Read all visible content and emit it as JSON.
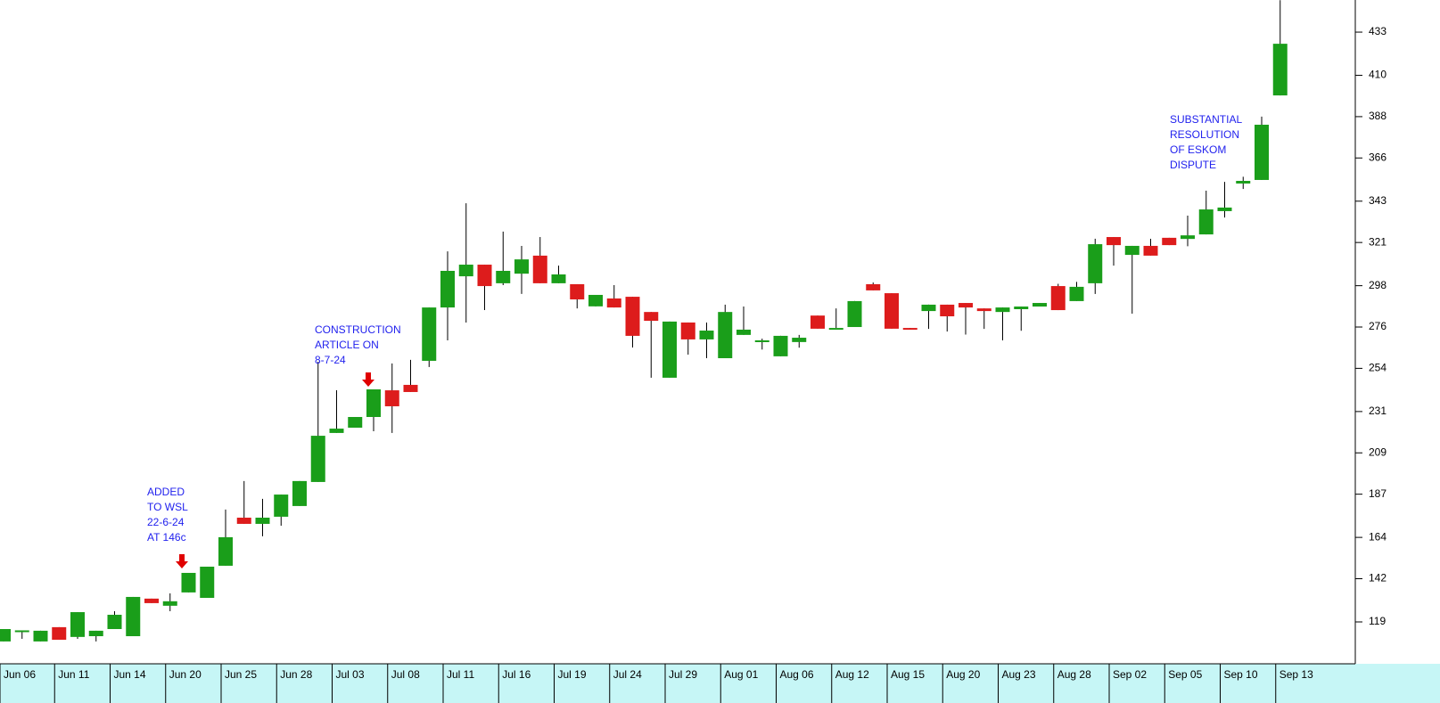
{
  "chart_data": {
    "type": "candlestick",
    "categories": [
      "Jun 06",
      null,
      null,
      "Jun 11",
      null,
      null,
      "Jun 14",
      null,
      null,
      "Jun 20",
      null,
      null,
      "Jun 25",
      null,
      null,
      "Jun 28",
      null,
      null,
      "Jul 03",
      null,
      null,
      "Jul 08",
      null,
      null,
      "Jul 11",
      null,
      null,
      "Jul 16",
      null,
      null,
      "Jul 19",
      null,
      null,
      "Jul 24",
      null,
      null,
      "Jul 29",
      null,
      null,
      "Aug 01",
      null,
      null,
      "Aug 06",
      null,
      null,
      "Aug 12",
      null,
      null,
      "Aug 15",
      null,
      null,
      "Aug 20",
      null,
      null,
      "Aug 23",
      null,
      null,
      "Aug 28",
      null,
      null,
      "Sep 02",
      null,
      null,
      "Sep 05",
      null,
      null,
      "Sep 10",
      null,
      null,
      "Sep 13"
    ],
    "open": [
      108.6,
      114,
      108.6,
      116.2,
      111,
      111.4,
      115.2,
      111.4,
      131.4,
      127.6,
      134.7,
      131.8,
      148.9,
      174.5,
      171.2,
      175,
      180.7,
      193.5,
      219.6,
      222.4,
      228.1,
      242.3,
      245.2,
      258,
      286.4,
      303,
      309.2,
      299.3,
      304.4,
      314,
      299.3,
      298.8,
      287,
      291.2,
      292.1,
      284,
      249,
      278.4,
      269.4,
      259.4,
      271.8,
      268.9,
      260.4,
      268,
      282.1,
      275.5,
      276,
      298.8,
      294,
      275.5,
      284.5,
      287.9,
      288.8,
      285.9,
      284,
      285.5,
      286.9,
      297.8,
      289.8,
      299.3,
      323.9,
      314.4,
      319.2,
      323.5,
      322.9,
      325.3,
      337.7,
      352.4,
      354.3,
      399.3
    ],
    "high": [
      115.2,
      114.5,
      114.3,
      116.2,
      124.2,
      114.3,
      124.7,
      132.3,
      131.4,
      134.2,
      145.1,
      148.4,
      178.8,
      194,
      184.5,
      186.8,
      194,
      257.5,
      242.3,
      228.1,
      242.8,
      256.6,
      258.5,
      286.4,
      316.3,
      341.9,
      309.2,
      326.8,
      319.2,
      323.9,
      308.7,
      298.8,
      293.1,
      298.3,
      292.1,
      284,
      278.9,
      278.4,
      278.4,
      287.9,
      286.9,
      269.8,
      271.3,
      271.8,
      282.1,
      285.9,
      289.8,
      299.7,
      294,
      275.5,
      287.9,
      287.9,
      288.8,
      285.9,
      286.4,
      286.9,
      288.8,
      299,
      300,
      323,
      323.9,
      319.2,
      323,
      323.5,
      335.3,
      348.6,
      353.3,
      356,
      388,
      450
    ],
    "low": [
      108.6,
      110,
      108.6,
      109.5,
      110,
      108.6,
      115.2,
      111.4,
      129,
      124.7,
      134.7,
      131.8,
      148.9,
      171.2,
      164.6,
      170.2,
      180.7,
      193.5,
      219.6,
      222.4,
      220.5,
      219.6,
      241.4,
      254.7,
      268.9,
      278.4,
      285,
      298.3,
      293.6,
      299.3,
      299.3,
      285.9,
      287,
      286.4,
      265.1,
      249,
      249,
      261.3,
      259.4,
      259.4,
      271.8,
      264,
      260.4,
      265,
      275.1,
      275.5,
      276,
      295.5,
      275.1,
      274.6,
      275,
      273.6,
      272,
      275,
      268.9,
      274,
      286.9,
      285,
      289.8,
      293.6,
      308.7,
      283.1,
      314,
      319.6,
      319,
      325.3,
      334.3,
      349.5,
      354.3,
      399.3
    ],
    "close": [
      115.2,
      114.5,
      114.3,
      109.5,
      124.2,
      114.3,
      122.8,
      132.3,
      129,
      130,
      145.1,
      148.4,
      164.1,
      171.2,
      174.5,
      186.8,
      194,
      218.1,
      221.9,
      228.1,
      242.8,
      233.8,
      241.4,
      286.4,
      305.9,
      309.2,
      297.8,
      305.9,
      312,
      299.3,
      304,
      290.7,
      293.1,
      286.4,
      271.3,
      279.3,
      278.9,
      269.4,
      274.1,
      284,
      274.6,
      268.9,
      271.3,
      270.3,
      275.1,
      275.5,
      289.8,
      295.5,
      275.1,
      274.6,
      287.9,
      281.7,
      286.4,
      284.5,
      286.4,
      286.9,
      288.8,
      285,
      297.4,
      320.1,
      319.6,
      319.2,
      314,
      319.6,
      324.8,
      338.6,
      339.6,
      353.8,
      383.7,
      426.8
    ],
    "up_color": "#1a9e1a",
    "down_color": "#dd1c1c",
    "ylim": [
      96.7,
      450.1
    ],
    "yticks": [
      119,
      142,
      164,
      187,
      209,
      231,
      254,
      276,
      298,
      321,
      343,
      366,
      388,
      410,
      433
    ],
    "annotations": [
      {
        "lines": [
          "ADDED",
          "TO WSL",
          "22-6-24",
          "AT 146c"
        ]
      },
      {
        "lines": [
          "CONSTRUCTION",
          "ARTICLE ON",
          "8-7-24"
        ]
      },
      {
        "lines": [
          "SUBSTANTIAL",
          "RESOLUTION",
          "OF ESKOM",
          "DISPUTE"
        ]
      }
    ]
  }
}
